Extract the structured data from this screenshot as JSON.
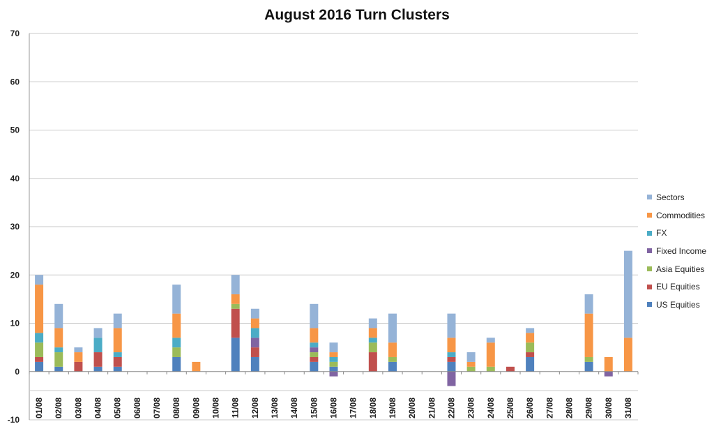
{
  "chart_data": {
    "type": "bar",
    "stacked": true,
    "title": "August 2016 Turn Clusters",
    "xlabel": "",
    "ylabel": "",
    "ylim": [
      -10,
      70
    ],
    "yticks": [
      -10,
      0,
      10,
      20,
      30,
      40,
      50,
      60,
      70
    ],
    "grid": true,
    "legend_position": "right",
    "categories": [
      "01/08",
      "02/08",
      "03/08",
      "04/08",
      "05/08",
      "06/08",
      "07/08",
      "08/08",
      "09/08",
      "10/08",
      "11/08",
      "12/08",
      "13/08",
      "14/08",
      "15/08",
      "16/08",
      "17/08",
      "18/08",
      "19/08",
      "20/08",
      "21/08",
      "22/08",
      "23/08",
      "24/08",
      "25/08",
      "26/08",
      "27/08",
      "28/08",
      "29/08",
      "30/08",
      "31/08"
    ],
    "series": [
      {
        "name": "US Equities",
        "color": "#4F81BD",
        "values": [
          2,
          1,
          0,
          1,
          1,
          0,
          0,
          3,
          0,
          0,
          7,
          3,
          0,
          0,
          2,
          1,
          0,
          0,
          2,
          0,
          0,
          2,
          0,
          0,
          0,
          3,
          0,
          0,
          2,
          0,
          0
        ]
      },
      {
        "name": "EU Equities",
        "color": "#C0504D",
        "values": [
          1,
          0,
          2,
          3,
          2,
          0,
          0,
          0,
          0,
          0,
          6,
          2,
          0,
          0,
          1,
          0,
          0,
          4,
          0,
          0,
          0,
          1,
          0,
          0,
          1,
          1,
          0,
          0,
          0,
          0,
          0
        ]
      },
      {
        "name": "Asia Equities",
        "color": "#9BBB59",
        "values": [
          3,
          3,
          0,
          0,
          0,
          0,
          0,
          2,
          0,
          0,
          1,
          0,
          0,
          0,
          1,
          1,
          0,
          2,
          1,
          0,
          0,
          0,
          1,
          1,
          0,
          2,
          0,
          0,
          1,
          0,
          0
        ]
      },
      {
        "name": "Fixed Income",
        "color": "#8064A2",
        "values": [
          0,
          0,
          0,
          0,
          0,
          0,
          0,
          0,
          0,
          0,
          0,
          2,
          0,
          0,
          1,
          -1,
          0,
          0,
          0,
          0,
          0,
          -3,
          0,
          0,
          0,
          0,
          0,
          0,
          0,
          -1,
          0
        ]
      },
      {
        "name": "FX",
        "color": "#4BACC6",
        "values": [
          2,
          1,
          0,
          3,
          1,
          0,
          0,
          2,
          0,
          0,
          0,
          2,
          0,
          0,
          1,
          1,
          0,
          1,
          0,
          0,
          0,
          1,
          0,
          0,
          0,
          0,
          0,
          0,
          0,
          0,
          0
        ]
      },
      {
        "name": "Commodities",
        "color": "#F79646",
        "values": [
          10,
          4,
          2,
          0,
          5,
          0,
          0,
          5,
          2,
          0,
          2,
          2,
          0,
          0,
          3,
          1,
          0,
          2,
          3,
          0,
          0,
          3,
          1,
          5,
          0,
          2,
          0,
          0,
          9,
          3,
          7
        ]
      },
      {
        "name": "Sectors",
        "color": "#95B3D7",
        "values": [
          2,
          5,
          1,
          2,
          3,
          0,
          0,
          6,
          0,
          0,
          4,
          2,
          0,
          0,
          5,
          2,
          0,
          2,
          6,
          0,
          0,
          5,
          2,
          1,
          0,
          1,
          0,
          0,
          4,
          0,
          18
        ]
      }
    ]
  }
}
